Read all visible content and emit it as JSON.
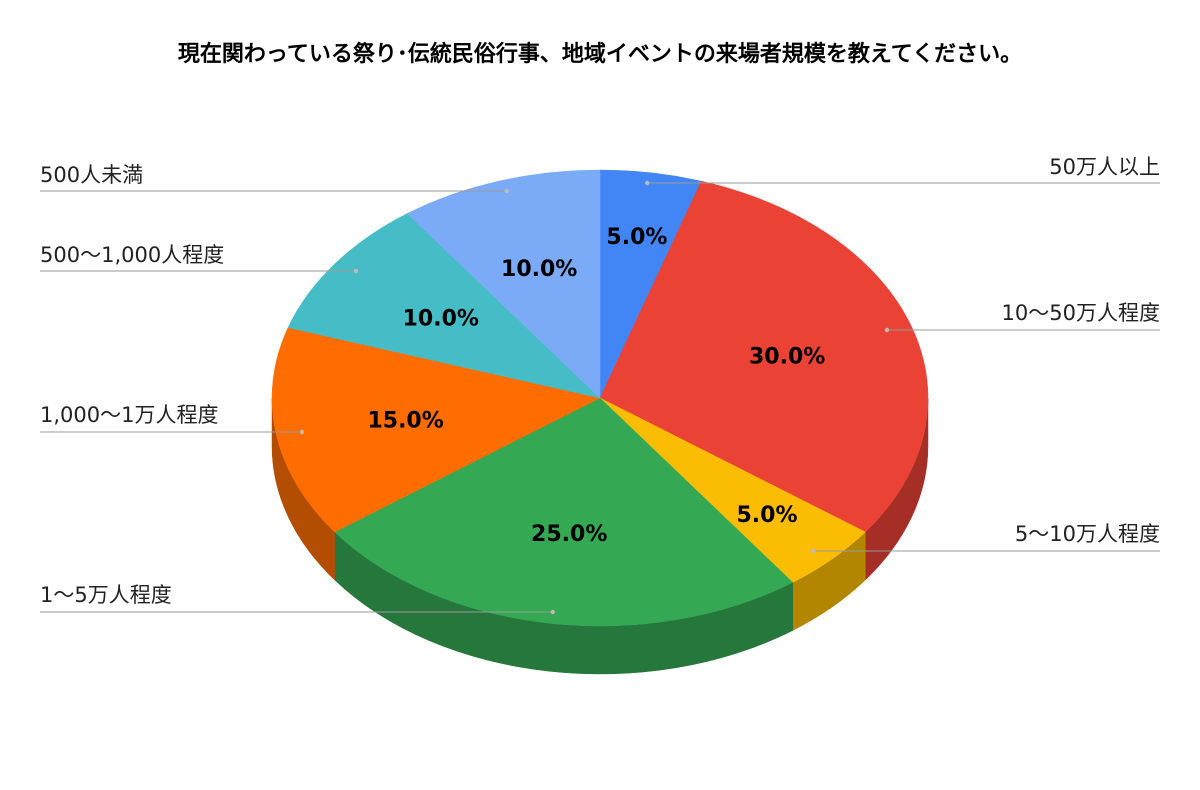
{
  "chart_data": {
    "type": "pie",
    "style": "3d",
    "title": "現在関わっている祭り･伝統民俗行事、地域イベントの来場者規模を教えてください。",
    "legend_placement": "callouts",
    "slices": [
      {
        "label": "50万人以上",
        "value": 5.0,
        "display": "5.0%",
        "color": "#4285F4",
        "side_color": "#2f62b8"
      },
      {
        "label": "10～50万人程度",
        "value": 30.0,
        "display": "30.0%",
        "color": "#EA4335",
        "side_color": "#a52f27"
      },
      {
        "label": "5～10万人程度",
        "value": 5.0,
        "display": "5.0%",
        "color": "#FBBC04",
        "side_color": "#b38600"
      },
      {
        "label": "1～5万人程度",
        "value": 25.0,
        "display": "25.0%",
        "color": "#34A853",
        "side_color": "#25773b"
      },
      {
        "label": "1,000～1万人程度",
        "value": 15.0,
        "display": "15.0%",
        "color": "#FF6D01",
        "side_color": "#b34d01"
      },
      {
        "label": "500～1,000人程度",
        "value": 10.0,
        "display": "10.0%",
        "color": "#46BDC6",
        "side_color": "#31858b"
      },
      {
        "label": "500人未満",
        "value": 10.0,
        "display": "10.0%",
        "color": "#7BAAF7",
        "side_color": "#5677ad"
      }
    ]
  }
}
